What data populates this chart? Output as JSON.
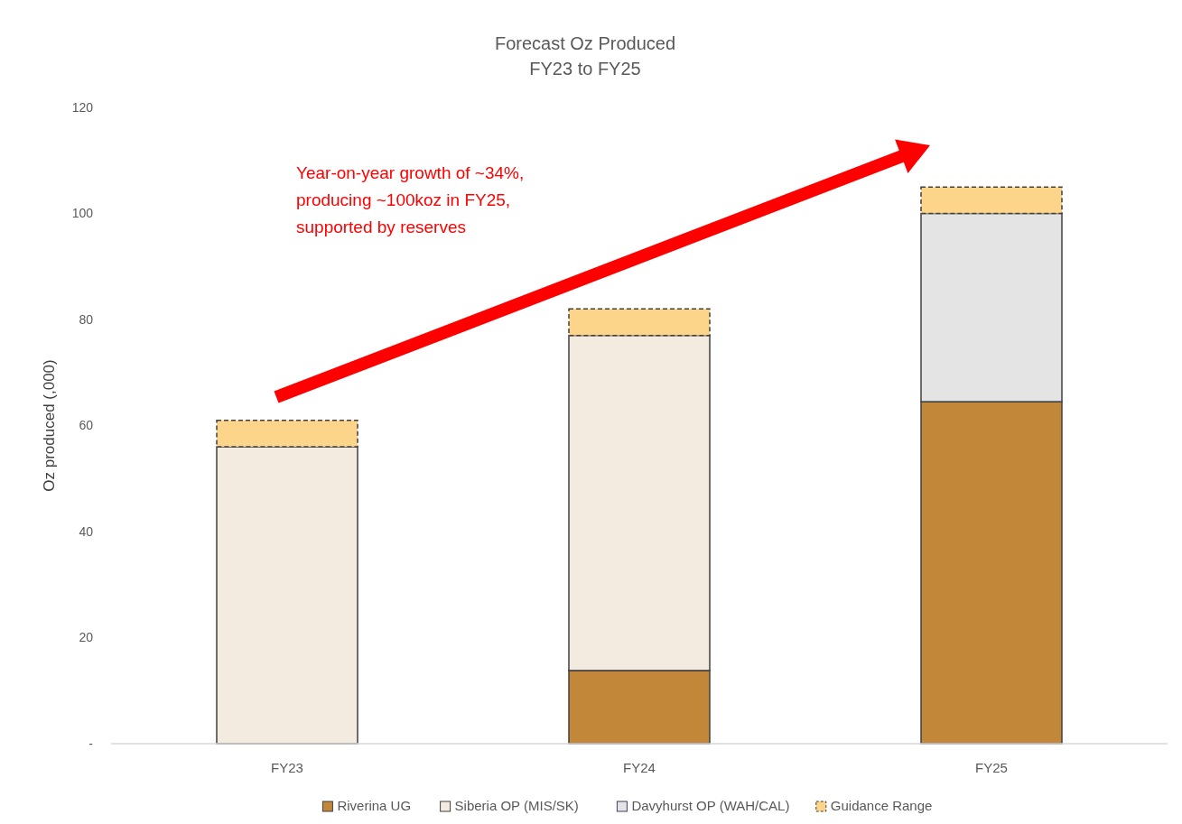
{
  "chart_data": {
    "type": "bar",
    "title": "Forecast Oz Produced",
    "subtitle": "FY23 to FY25",
    "ylabel": "Oz produced (,000)",
    "categories": [
      "FY23",
      "FY24",
      "FY25"
    ],
    "stacked": true,
    "series": [
      {
        "name": "Riverina UG",
        "color": "#c3873a",
        "values": [
          null,
          13.8,
          64.5
        ]
      },
      {
        "name": "Siberia OP (MIS/SK)",
        "color": "#f3ebe0",
        "values": [
          56,
          63.2,
          null
        ]
      },
      {
        "name": "Davyhurst OP (WAH/CAL)",
        "color": "#e4e4e4",
        "values": [
          null,
          null,
          35.5
        ]
      },
      {
        "name": "Guidance Range",
        "color": "#fdd58a",
        "values": [
          5,
          5,
          5
        ],
        "line_style": "dashed"
      }
    ],
    "ylim": [
      0,
      120
    ],
    "yticks": [
      {
        "value": 0,
        "label": "-"
      },
      20,
      40,
      60,
      80,
      100,
      120
    ],
    "grid": false,
    "legend": "bottom",
    "annotations": [
      "Year-on-year growth of ~34%,\nproducing ~100koz in FY25,\nsupported by reserves"
    ]
  }
}
